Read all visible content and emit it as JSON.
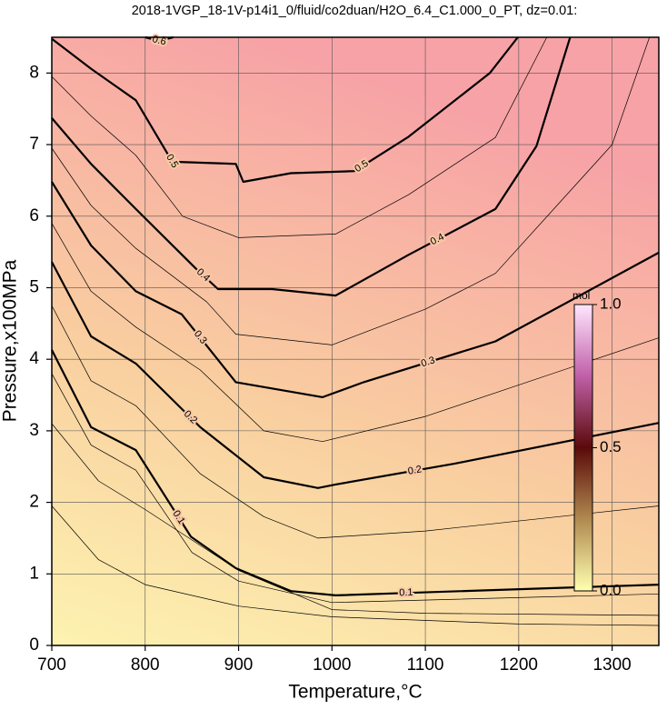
{
  "chart_data": {
    "type": "contour",
    "title": "2018-1VGP_18-1V-p14i1_0/fluid/co2duan/H2O_6.4_C1.000_0_PT, dz=0.01:",
    "x_label": "Temperature,°C",
    "y_label": "Pressure,x100MPa",
    "xlim": [
      700,
      1350
    ],
    "ylim": [
      0,
      8.5
    ],
    "xticks": [
      700,
      800,
      900,
      1000,
      1100,
      1200,
      1300
    ],
    "yticks": [
      0,
      1,
      2,
      3,
      4,
      5,
      6,
      7,
      8
    ],
    "grid": true,
    "line_color": "#000000",
    "colorbar": {
      "label": "mol",
      "lim": [
        0,
        1
      ],
      "ticks": [
        {
          "value": 0,
          "label": "0.0"
        },
        {
          "value": 0.5,
          "label": "0.5"
        },
        {
          "value": 1,
          "label": "1.0"
        }
      ]
    },
    "contours": [
      {
        "level": 0.02,
        "major": false,
        "x": [
          700,
          750,
          800,
          900,
          1000,
          1200,
          1350
        ],
        "y": [
          1.95,
          1.2,
          0.85,
          0.55,
          0.4,
          0.3,
          0.28
        ]
      },
      {
        "level": 0.05,
        "major": false,
        "x": [
          700,
          750,
          800,
          900,
          1000,
          1100,
          1350
        ],
        "y": [
          3.1,
          2.3,
          1.9,
          1.05,
          0.5,
          0.45,
          0.42
        ]
      },
      {
        "level": 0.08,
        "major": false,
        "x": [
          700,
          742,
          790,
          850,
          900,
          1000,
          1350
        ],
        "y": [
          3.8,
          2.8,
          2.45,
          1.3,
          0.9,
          0.6,
          0.72
        ]
      },
      {
        "level": 0.1,
        "major": true,
        "x": [
          700,
          742,
          790,
          849,
          897,
          956,
          1004,
          1092,
          1350
        ],
        "y": [
          4.13,
          3.05,
          2.73,
          1.52,
          1.08,
          0.76,
          0.7,
          0.74,
          0.85
        ]
      },
      {
        "level": 0.15,
        "major": false,
        "x": [
          700,
          742,
          790,
          859,
          927,
          985,
          1100,
          1350
        ],
        "y": [
          4.75,
          3.7,
          3.35,
          2.4,
          1.8,
          1.5,
          1.6,
          1.95
        ]
      },
      {
        "level": 0.2,
        "major": true,
        "x": [
          700,
          742,
          790,
          859,
          927,
          985,
          1004,
          1131,
          1350
        ],
        "y": [
          5.36,
          4.32,
          3.94,
          3.05,
          2.35,
          2.2,
          2.25,
          2.54,
          3.11
        ]
      },
      {
        "level": 0.25,
        "major": false,
        "x": [
          700,
          742,
          790,
          859,
          927,
          990,
          1100,
          1350
        ],
        "y": [
          5.9,
          4.95,
          4.45,
          3.85,
          3.0,
          2.85,
          3.2,
          4.3
        ]
      },
      {
        "level": 0.3,
        "major": true,
        "x": [
          700,
          742,
          790,
          839,
          897,
          990,
          1034,
          1175,
          1350
        ],
        "y": [
          6.48,
          5.59,
          4.95,
          4.63,
          3.68,
          3.47,
          3.68,
          4.25,
          5.49
        ]
      },
      {
        "level": 0.35,
        "major": false,
        "x": [
          700,
          742,
          790,
          866,
          897,
          1000,
          1100,
          1175,
          1300,
          1340
        ],
        "y": [
          6.95,
          6.15,
          5.55,
          4.8,
          4.35,
          4.2,
          4.7,
          5.2,
          7.0,
          8.5
        ]
      },
      {
        "level": 0.4,
        "major": true,
        "x": [
          700,
          742,
          790,
          854,
          878,
          936,
          1004,
          1082,
          1175,
          1219,
          1255
        ],
        "y": [
          7.37,
          6.73,
          6.1,
          5.27,
          4.98,
          4.98,
          4.89,
          5.46,
          6.1,
          6.98,
          8.5
        ]
      },
      {
        "level": 0.45,
        "major": false,
        "x": [
          700,
          742,
          790,
          840,
          900,
          1004,
          1082,
          1175,
          1230
        ],
        "y": [
          7.95,
          7.4,
          6.85,
          6.0,
          5.7,
          5.75,
          6.3,
          7.1,
          8.5
        ]
      },
      {
        "level": 0.5,
        "major": true,
        "x": [
          700,
          742,
          790,
          829,
          897,
          905,
          956,
          1024,
          1082,
          1169,
          1199
        ],
        "y": [
          8.48,
          8.06,
          7.62,
          6.76,
          6.73,
          6.48,
          6.6,
          6.63,
          7.11,
          8.0,
          8.5
        ]
      },
      {
        "level": 0.6,
        "major": true,
        "x": [
          800,
          815,
          830
        ],
        "y": [
          8.5,
          8.45,
          8.5
        ]
      }
    ]
  }
}
